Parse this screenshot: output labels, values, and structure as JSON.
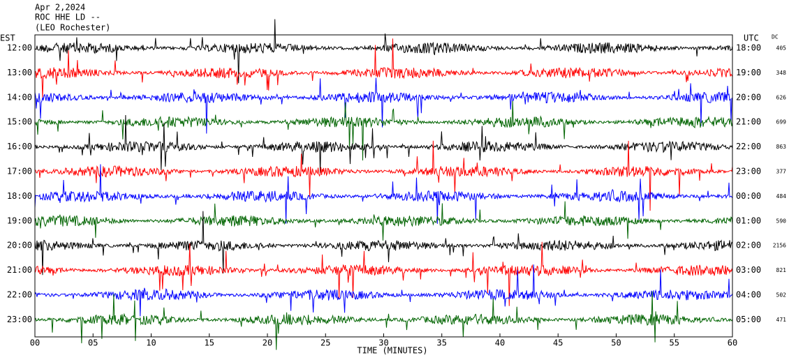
{
  "header": {
    "date": "Apr 2,2024",
    "station": "ROC HHE LD --",
    "location": "(LEO Rochester)"
  },
  "left_label": "EST",
  "right_label": "UTC",
  "dc_label": "DC",
  "rows": [
    {
      "est": "12:00",
      "utc": "18:00",
      "dc": "405"
    },
    {
      "est": "13:00",
      "utc": "19:00",
      "dc": "348"
    },
    {
      "est": "14:00",
      "utc": "20:00",
      "dc": "626"
    },
    {
      "est": "15:00",
      "utc": "21:00",
      "dc": "699"
    },
    {
      "est": "16:00",
      "utc": "22:00",
      "dc": "863"
    },
    {
      "est": "17:00",
      "utc": "23:00",
      "dc": "377"
    },
    {
      "est": "18:00",
      "utc": "00:00",
      "dc": "484"
    },
    {
      "est": "19:00",
      "utc": "01:00",
      "dc": "590"
    },
    {
      "est": "20:00",
      "utc": "02:00",
      "dc": "2156"
    },
    {
      "est": "21:00",
      "utc": "03:00",
      "dc": "821"
    },
    {
      "est": "22:00",
      "utc": "04:00",
      "dc": "502"
    },
    {
      "est": "23:00",
      "utc": "05:00",
      "dc": "471"
    }
  ],
  "trace_colors": [
    "#000000",
    "#ff0000",
    "#0000ff",
    "#006400"
  ],
  "x_axis": {
    "label": "TIME (MINUTES)",
    "ticks": [
      "00",
      "05",
      "10",
      "15",
      "20",
      "25",
      "30",
      "35",
      "40",
      "45",
      "50",
      "55",
      "60"
    ]
  }
}
